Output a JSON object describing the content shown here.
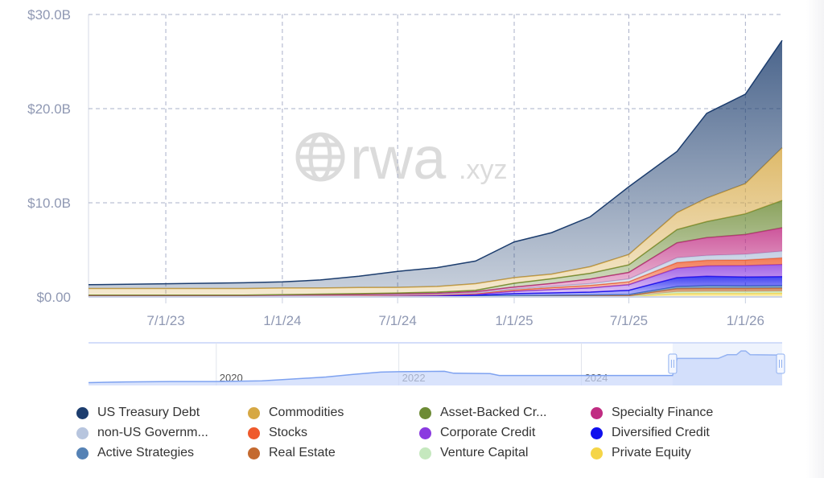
{
  "watermark": {
    "brand": "rwa",
    "suffix": ".xyz"
  },
  "colors": {
    "grid": "#a9b0c8",
    "axis_text": "#8f98b3",
    "navigator_line": "#7ea2f0",
    "navigator_fill": "#c9d7fb",
    "navigator_mask": "rgba(200,215,250,0.3)"
  },
  "chart_data": {
    "type": "area",
    "stacked": true,
    "title": "",
    "xlabel": "",
    "ylabel": "",
    "ylim": [
      0,
      30
    ],
    "y_ticks": [
      {
        "value": 0,
        "label": "$0.00"
      },
      {
        "value": 10,
        "label": "$10.0B"
      },
      {
        "value": 20,
        "label": "$20.0B"
      },
      {
        "value": 30,
        "label": "$30.0B"
      }
    ],
    "x_range": [
      "2023-03-01",
      "2026-02-28"
    ],
    "x_ticks": [
      {
        "date": "2023-07-01",
        "label": "7/1/23"
      },
      {
        "date": "2024-01-01",
        "label": "1/1/24"
      },
      {
        "date": "2024-07-01",
        "label": "7/1/24"
      },
      {
        "date": "2025-01-01",
        "label": "1/1/25"
      },
      {
        "date": "2025-07-01",
        "label": "7/1/25"
      },
      {
        "date": "2026-01-01",
        "label": "1/1/26"
      }
    ],
    "grid": true,
    "legend_position": "bottom",
    "x": [
      "2023-03-01",
      "2023-05-01",
      "2023-07-01",
      "2023-09-01",
      "2023-11-01",
      "2024-01-01",
      "2024-03-01",
      "2024-05-01",
      "2024-07-01",
      "2024-09-01",
      "2024-11-01",
      "2025-01-01",
      "2025-03-01",
      "2025-05-01",
      "2025-07-01",
      "2025-09-15",
      "2025-11-01",
      "2026-01-01",
      "2026-02-28"
    ],
    "series": [
      {
        "name": "Private Equity",
        "color": "#f5d547",
        "values": [
          0.01,
          0.01,
          0.01,
          0.01,
          0.01,
          0.01,
          0.01,
          0.01,
          0.01,
          0.01,
          0.02,
          0.03,
          0.03,
          0.04,
          0.05,
          0.35,
          0.38,
          0.38,
          0.4
        ]
      },
      {
        "name": "Venture Capital",
        "color": "#c5e8be",
        "values": [
          0.01,
          0.01,
          0.01,
          0.01,
          0.01,
          0.01,
          0.01,
          0.01,
          0.01,
          0.01,
          0.01,
          0.02,
          0.02,
          0.02,
          0.03,
          0.2,
          0.2,
          0.2,
          0.2
        ]
      },
      {
        "name": "Real Estate",
        "color": "#c46a30",
        "values": [
          0.01,
          0.01,
          0.01,
          0.01,
          0.01,
          0.01,
          0.01,
          0.01,
          0.02,
          0.02,
          0.02,
          0.04,
          0.05,
          0.05,
          0.06,
          0.35,
          0.35,
          0.35,
          0.35
        ]
      },
      {
        "name": "Active Strategies",
        "color": "#5582b5",
        "values": [
          0.01,
          0.01,
          0.01,
          0.01,
          0.01,
          0.02,
          0.02,
          0.02,
          0.03,
          0.03,
          0.04,
          0.06,
          0.08,
          0.1,
          0.12,
          0.2,
          0.27,
          0.25,
          0.25
        ]
      },
      {
        "name": "Diversified Credit",
        "color": "#1010ee",
        "values": [
          0.01,
          0.01,
          0.01,
          0.01,
          0.01,
          0.02,
          0.02,
          0.02,
          0.03,
          0.05,
          0.1,
          0.2,
          0.25,
          0.3,
          0.45,
          0.95,
          1.0,
          0.95,
          0.95
        ]
      },
      {
        "name": "Corporate Credit",
        "color": "#8a3ae0",
        "values": [
          0.03,
          0.03,
          0.03,
          0.03,
          0.03,
          0.03,
          0.03,
          0.04,
          0.05,
          0.06,
          0.1,
          0.25,
          0.35,
          0.45,
          0.6,
          1.0,
          1.1,
          1.2,
          1.3
        ]
      },
      {
        "name": "Stocks",
        "color": "#ef5a2c",
        "values": [
          0.02,
          0.02,
          0.02,
          0.02,
          0.02,
          0.02,
          0.03,
          0.03,
          0.04,
          0.05,
          0.07,
          0.15,
          0.2,
          0.25,
          0.3,
          0.6,
          0.6,
          0.6,
          0.7
        ]
      },
      {
        "name": "non-US Governm...",
        "color": "#b7c5de",
        "values": [
          0.02,
          0.02,
          0.02,
          0.02,
          0.02,
          0.03,
          0.04,
          0.04,
          0.05,
          0.06,
          0.07,
          0.1,
          0.15,
          0.2,
          0.3,
          0.5,
          0.5,
          0.6,
          0.7
        ]
      },
      {
        "name": "Specialty Finance",
        "color": "#c02c82",
        "values": [
          0.03,
          0.03,
          0.03,
          0.03,
          0.03,
          0.05,
          0.05,
          0.07,
          0.08,
          0.1,
          0.13,
          0.2,
          0.3,
          0.5,
          0.7,
          1.6,
          1.9,
          2.1,
          2.5
        ]
      },
      {
        "name": "Asset-Backed Cr...",
        "color": "#6d8b35",
        "values": [
          0.05,
          0.05,
          0.05,
          0.05,
          0.05,
          0.05,
          0.08,
          0.1,
          0.1,
          0.12,
          0.15,
          0.4,
          0.5,
          0.6,
          0.8,
          1.4,
          1.7,
          2.2,
          2.9
        ]
      },
      {
        "name": "Commodities",
        "color": "#d6a844",
        "values": [
          0.7,
          0.7,
          0.7,
          0.7,
          0.7,
          0.7,
          0.65,
          0.65,
          0.6,
          0.6,
          0.7,
          0.6,
          0.5,
          0.7,
          1.1,
          1.8,
          2.5,
          3.2,
          5.6
        ]
      },
      {
        "name": "US Treasury Debt",
        "color": "#1c3d6e",
        "values": [
          0.4,
          0.45,
          0.5,
          0.55,
          0.6,
          0.65,
          0.85,
          1.2,
          1.7,
          2.0,
          2.4,
          3.8,
          4.4,
          5.3,
          7.2,
          6.5,
          9.0,
          9.5,
          11.4
        ]
      }
    ],
    "legend_order": [
      "US Treasury Debt",
      "Commodities",
      "Asset-Backed Cr...",
      "Specialty Finance",
      "non-US Governm...",
      "Stocks",
      "Corporate Credit",
      "Diversified Credit",
      "Active Strategies",
      "Real Estate",
      "Venture Capital",
      "Private Equity"
    ],
    "navigator": {
      "x_range": [
        2018.6,
        2026.2
      ],
      "selection": [
        2025.0,
        2026.2
      ],
      "x_ticks": [
        {
          "value": 2020,
          "label": "2020"
        },
        {
          "value": 2022,
          "label": "2022"
        },
        {
          "value": 2024,
          "label": "2024"
        }
      ],
      "x": [
        2018.6,
        2019.0,
        2019.5,
        2020.0,
        2020.5,
        2020.8,
        2021.2,
        2021.5,
        2021.8,
        2022.0,
        2022.5,
        2022.6,
        2023.0,
        2023.1,
        2023.6,
        2024.0,
        2024.5,
        2025.0,
        2025.05,
        2025.5,
        2025.6,
        2025.7,
        2025.75,
        2025.8,
        2025.85,
        2026.2
      ],
      "values": [
        0.1,
        0.3,
        0.4,
        0.4,
        0.6,
        1.0,
        1.6,
        2.3,
        2.9,
        3.0,
        3.1,
        2.6,
        2.5,
        2.0,
        2.0,
        2.0,
        2.0,
        2.0,
        6.5,
        6.5,
        7.5,
        7.5,
        8.5,
        8.5,
        7.5,
        7.4
      ]
    }
  }
}
